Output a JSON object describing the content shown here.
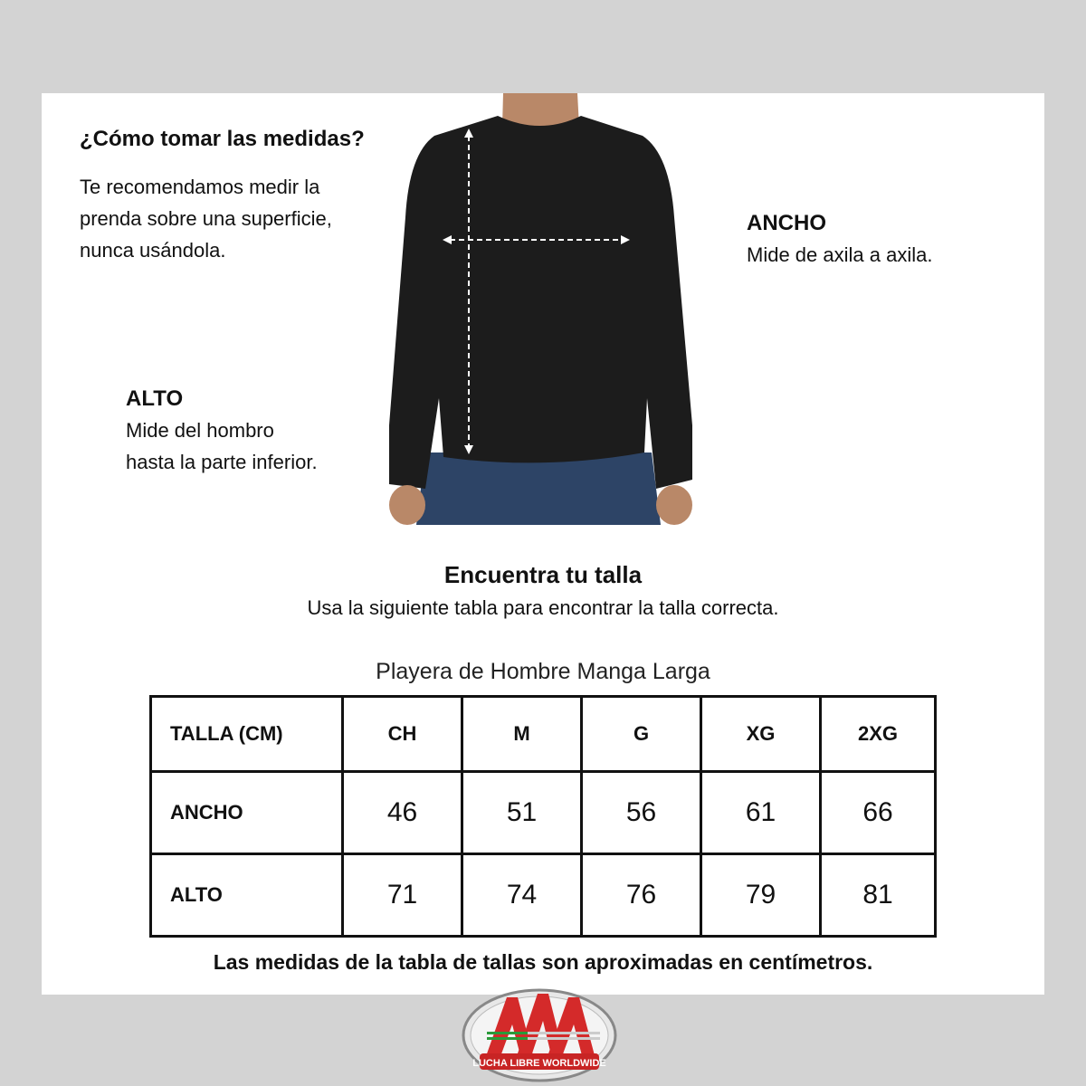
{
  "intro": {
    "title": "¿Cómo tomar las medidas?",
    "lines": [
      "Te recomendamos medir la",
      "prenda sobre una superficie,",
      "nunca usándola."
    ]
  },
  "ancho": {
    "title": "ANCHO",
    "desc": "Mide de axila a axila."
  },
  "alto": {
    "title": "ALTO",
    "lines": [
      "Mide del hombro",
      "hasta la parte inferior."
    ]
  },
  "find": {
    "title": "Encuentra tu talla",
    "subtitle": "Usa la siguiente tabla para encontrar la talla correcta."
  },
  "table": {
    "caption": "Playera de Hombre Manga Larga",
    "headers": [
      "TALLA (CM)",
      "CH",
      "M",
      "G",
      "XG",
      "2XG"
    ],
    "rows": [
      [
        "ANCHO",
        "46",
        "51",
        "56",
        "61",
        "66"
      ],
      [
        "ALTO",
        "71",
        "74",
        "76",
        "79",
        "81"
      ]
    ]
  },
  "note": "Las medidas de la tabla de tallas son aproximadas en centímetros.",
  "logo": {
    "text": "AAA",
    "tagline": "LUCHA LIBRE WORLDWIDE"
  },
  "colors": {
    "background": "#d3d3d3",
    "panel": "#ffffff",
    "logo_red": "#d42a2a"
  }
}
